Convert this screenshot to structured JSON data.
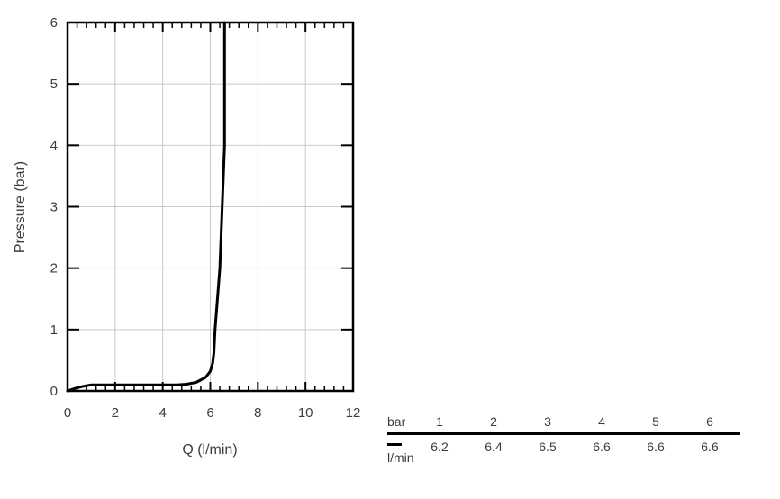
{
  "chart_data": {
    "type": "line",
    "title": "",
    "xlabel": "Q (l/min)",
    "ylabel": "Pressure (bar)",
    "xlim": [
      0,
      12
    ],
    "ylim": [
      0,
      6
    ],
    "x_ticks": [
      0,
      2,
      4,
      6,
      8,
      10,
      12
    ],
    "y_ticks": [
      0,
      1,
      2,
      3,
      4,
      5,
      6
    ],
    "x_minor_step": 0.4,
    "grid": true,
    "legend_position": "none",
    "axis_color": "#000000",
    "grid_color": "#c9c9c9",
    "text_color": "#3c3c3c",
    "series": [
      {
        "name": "l/min",
        "color": "#000000",
        "points": [
          [
            0,
            0
          ],
          [
            0.3,
            0.04
          ],
          [
            0.6,
            0.07
          ],
          [
            1,
            0.1
          ],
          [
            2,
            0.1
          ],
          [
            3,
            0.1
          ],
          [
            4,
            0.1
          ],
          [
            4.6,
            0.1
          ],
          [
            5,
            0.11
          ],
          [
            5.4,
            0.14
          ],
          [
            5.8,
            0.22
          ],
          [
            6.0,
            0.32
          ],
          [
            6.1,
            0.45
          ],
          [
            6.15,
            0.62
          ],
          [
            6.2,
            1
          ],
          [
            6.4,
            2
          ],
          [
            6.5,
            3
          ],
          [
            6.6,
            4
          ],
          [
            6.6,
            5
          ],
          [
            6.6,
            6
          ]
        ]
      }
    ]
  },
  "flow_table": {
    "header_label": "bar",
    "pressures": [
      "1",
      "2",
      "3",
      "4",
      "5",
      "6"
    ],
    "unit_label": "l/min",
    "flows": [
      "6.2",
      "6.4",
      "6.5",
      "6.6",
      "6.6",
      "6.6"
    ],
    "rule_color": "#000000",
    "swatch_color": "#000000"
  }
}
